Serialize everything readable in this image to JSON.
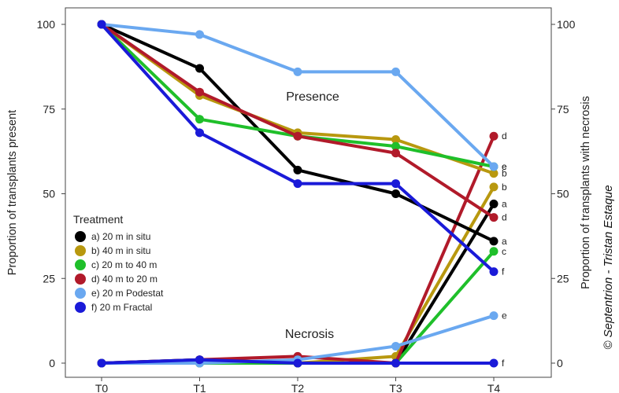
{
  "chart_data": {
    "type": "line",
    "x": [
      "T0",
      "T1",
      "T2",
      "T3",
      "T4"
    ],
    "ylabel_left": "Proportion of transplants present",
    "ylabel_right": "Proportion of transplants with necrosis",
    "ylim": [
      0,
      100
    ],
    "yticks": [
      0,
      25,
      50,
      75,
      100
    ],
    "grid": false,
    "annotations": {
      "presence": "Presence",
      "necrosis": "Necrosis"
    },
    "legend": {
      "title": "Treatment",
      "placement": "left-middle"
    },
    "credit": "© Septentrion - Tristan Estaque",
    "series": [
      {
        "name": "a) 20 m in situ",
        "color": "#000000",
        "presence": [
          100,
          87,
          57,
          50,
          36
        ],
        "presence_end_label": "a",
        "necrosis": [
          0,
          1,
          0,
          0,
          47
        ],
        "necrosis_end_label": "a"
      },
      {
        "name": "b) 40 m in situ",
        "color": "#b8980f",
        "presence": [
          100,
          79,
          68,
          66,
          56
        ],
        "presence_end_label": "b",
        "necrosis": [
          0,
          0,
          0,
          2,
          52
        ],
        "necrosis_end_label": "b"
      },
      {
        "name": "c) 20 m to 40 m",
        "color": "#1fbf2a",
        "presence": [
          100,
          72,
          67,
          64,
          58
        ],
        "presence_end_label": "c",
        "necrosis": [
          0,
          0,
          0,
          0,
          33
        ],
        "necrosis_end_label": "c"
      },
      {
        "name": "d) 40 m to 20 m",
        "color": "#b11a2a",
        "presence": [
          100,
          80,
          67,
          62,
          43
        ],
        "presence_end_label": "d",
        "necrosis": [
          0,
          1,
          2,
          0,
          67
        ],
        "necrosis_end_label": "d"
      },
      {
        "name": "e) 20 m Podestat",
        "color": "#6aa8f0",
        "presence": [
          100,
          97,
          86,
          86,
          58
        ],
        "presence_end_label": "e",
        "necrosis": [
          0,
          0,
          1,
          5,
          14
        ],
        "necrosis_end_label": "e"
      },
      {
        "name": "f) 20 m Fractal",
        "color": "#1a1ad8",
        "presence": [
          100,
          68,
          53,
          53,
          27
        ],
        "presence_end_label": "f",
        "necrosis": [
          0,
          1,
          0,
          0,
          0
        ],
        "necrosis_end_label": "f"
      }
    ]
  }
}
